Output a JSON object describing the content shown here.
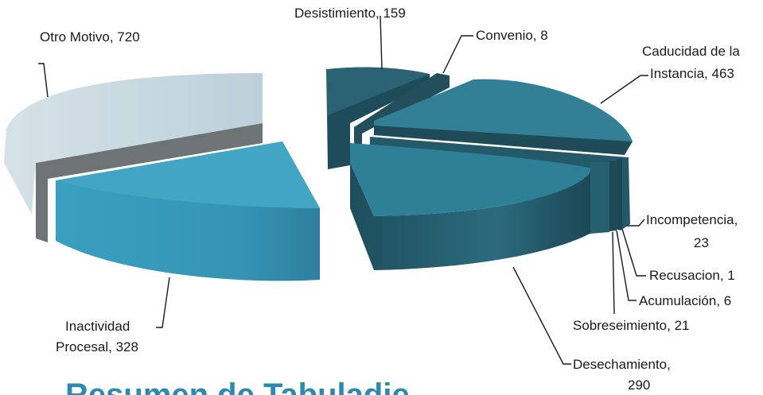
{
  "chart_data": {
    "type": "pie",
    "title": "",
    "style": "3d-exploded",
    "slices": [
      {
        "label": "Desistimiento",
        "value": 159,
        "label_text": "Desistimiento, 159",
        "color": "#2c6373"
      },
      {
        "label": "Convenio",
        "value": 8,
        "label_text": "Convenio, 8",
        "color": "#2a5f6e"
      },
      {
        "label": "Caducidad de la Instancia",
        "value": 463,
        "label_text": [
          "Caducidad de la",
          "Instancia, 463"
        ],
        "color": "#337f92"
      },
      {
        "label": "Incompetencia",
        "value": 23,
        "label_text": [
          "Incompetencia,",
          "23"
        ],
        "color": "#23586a"
      },
      {
        "label": "Recusacion",
        "value": 1,
        "label_text": "Recusacion, 1",
        "color": "#23586a"
      },
      {
        "label": "Acumulación",
        "value": 6,
        "label_text": "Acumulación, 6",
        "color": "#23586a"
      },
      {
        "label": "Sobreseimiento",
        "value": 21,
        "label_text": "Sobreseimiento, 21",
        "color": "#2a6679"
      },
      {
        "label": "Desechamiento",
        "value": 290,
        "label_text": [
          "Desechamiento,",
          "290"
        ],
        "color": "#2e7a8e"
      },
      {
        "label": "Inactividad Procesal",
        "value": 328,
        "label_text": [
          "Inactividad",
          "Procesal, 328"
        ],
        "color": "#3c9dbe"
      },
      {
        "label": "Otro Motivo",
        "value": 720,
        "label_text": "Otro Motivo, 720",
        "color": "#c5d7df"
      }
    ]
  },
  "footer": {
    "partial_title": "Resumen de Tabuladie"
  }
}
